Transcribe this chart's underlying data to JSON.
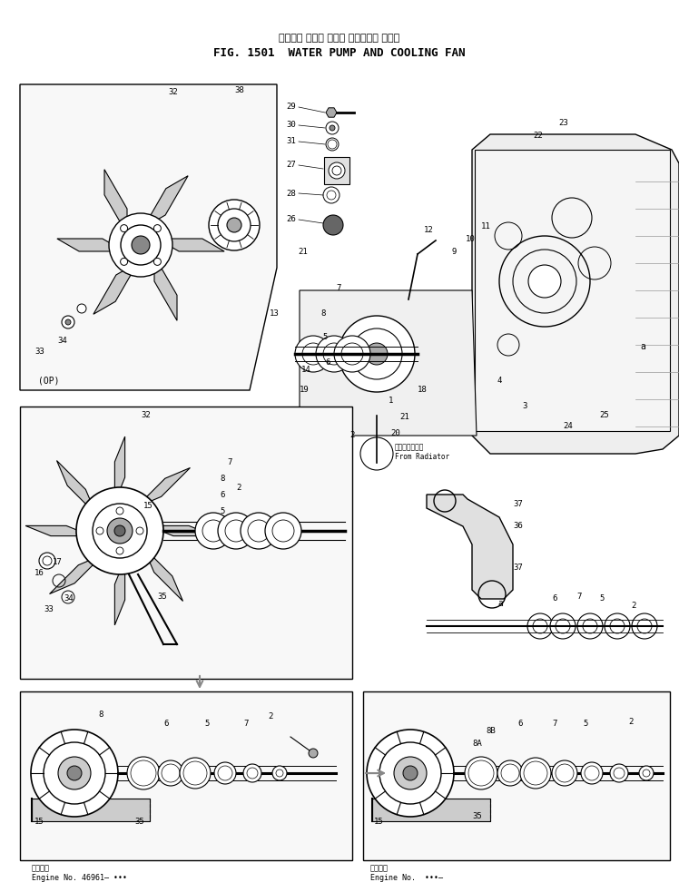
{
  "title_japanese": "ウォータ ポンプ および クーリング ファン",
  "title_english": "FIG. 1501  WATER PUMP AND COOLING FAN",
  "bg_color": "#ffffff",
  "fig_width": 7.48,
  "fig_height": 9.83,
  "dpi": 100,
  "bottom_left_label1_jp": "適用号範",
  "bottom_left_label1_en": "Engine No. 46961– •••",
  "bottom_right_label1_jp": "適用号範",
  "bottom_right_label1_en": "Engine No.  •••–"
}
